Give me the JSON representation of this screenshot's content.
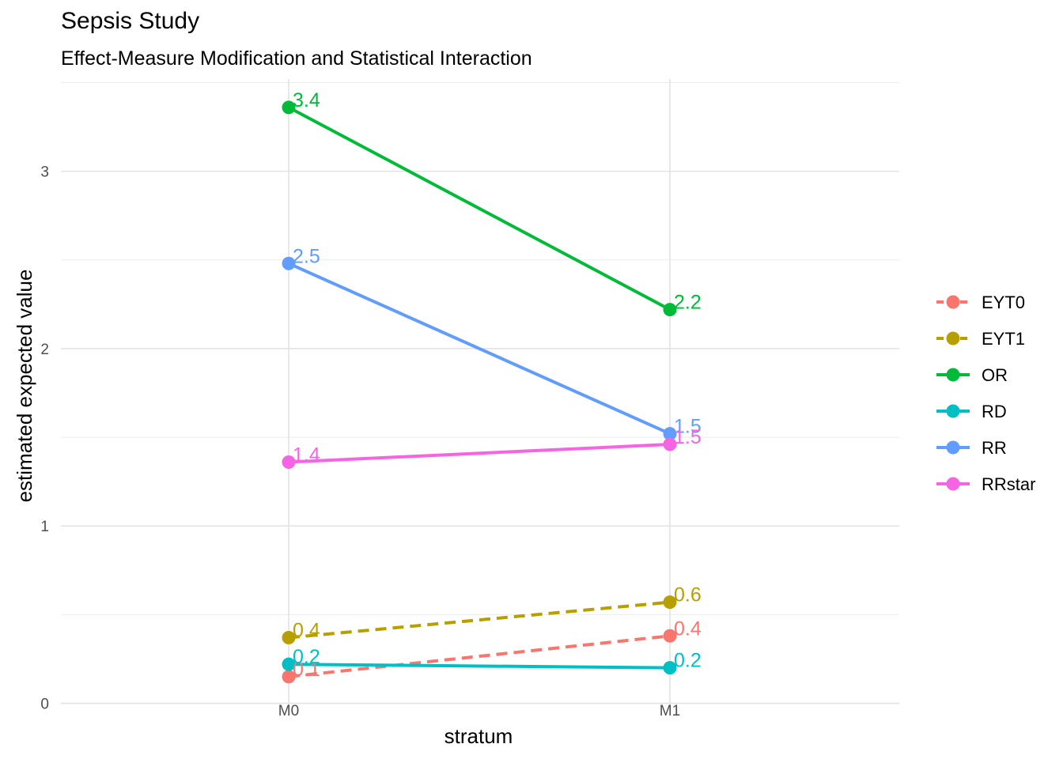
{
  "chart_data": {
    "type": "line",
    "title": "Sepsis Study",
    "subtitle": "Effect-Measure Modification and Statistical Interaction",
    "xlabel": "stratum",
    "ylabel": "estimated expected value",
    "categories": [
      "M0",
      "M1"
    ],
    "ylim": [
      -0.02,
      3.52
    ],
    "yticks": [
      0,
      1,
      2,
      3
    ],
    "grid": true,
    "legend_position": "right",
    "series": [
      {
        "name": "EYT0",
        "values": [
          0.15,
          0.38
        ],
        "labels": [
          "0.1",
          "0.4"
        ],
        "color": "#F8766D",
        "linetype": "dashed"
      },
      {
        "name": "EYT1",
        "values": [
          0.37,
          0.57
        ],
        "labels": [
          "0.4",
          "0.6"
        ],
        "color": "#B79F00",
        "linetype": "dashed"
      },
      {
        "name": "OR",
        "values": [
          3.36,
          2.22
        ],
        "labels": [
          "3.4",
          "2.2"
        ],
        "color": "#00BA38",
        "linetype": "solid"
      },
      {
        "name": "RD",
        "values": [
          0.22,
          0.2
        ],
        "labels": [
          "0.2",
          "0.2"
        ],
        "color": "#00BFC4",
        "linetype": "solid"
      },
      {
        "name": "RR",
        "values": [
          2.48,
          1.52
        ],
        "labels": [
          "2.5",
          "1.5"
        ],
        "color": "#619CFF",
        "linetype": "solid"
      },
      {
        "name": "RRstar",
        "values": [
          1.36,
          1.46
        ],
        "labels": [
          "1.4",
          "1.5"
        ],
        "color": "#F564E3",
        "linetype": "solid"
      }
    ]
  }
}
